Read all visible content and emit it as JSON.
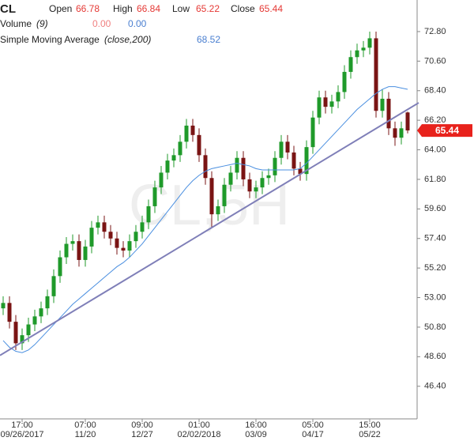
{
  "chart_data": {
    "type": "candlestick",
    "header": {
      "symbol": "CL",
      "open_label": "Open",
      "open": "66.78",
      "high_label": "High",
      "high": "66.84",
      "low_label": "Low",
      "low": "65.22",
      "close_label": "Close",
      "close": "65.44",
      "volume_label": "Volume",
      "volume_param": "(9)",
      "volume_a": "0.00",
      "volume_b": "0.00",
      "sma_label": "Simple Moving Average",
      "sma_param": "(close,200)",
      "sma_value": "68.52"
    },
    "watermark": "CL,5H",
    "categories": [
      null,
      null,
      null,
      "17:00",
      null,
      null,
      null,
      null,
      null,
      null,
      null,
      null,
      null,
      "07:00",
      null,
      null,
      null,
      null,
      null,
      null,
      null,
      null,
      "09:00",
      null,
      null,
      null,
      null,
      null,
      null,
      null,
      null,
      "01:00",
      null,
      null,
      null,
      null,
      null,
      null,
      null,
      null,
      "16:00",
      null,
      null,
      null,
      null,
      null,
      null,
      null,
      null,
      "05:00",
      null,
      null,
      null,
      null,
      null,
      null,
      null,
      null,
      "15:00",
      null,
      null,
      null,
      null,
      null,
      null
    ],
    "category_dates": [
      null,
      null,
      null,
      "09/26/2017",
      null,
      null,
      null,
      null,
      null,
      null,
      null,
      null,
      null,
      "11/20",
      null,
      null,
      null,
      null,
      null,
      null,
      null,
      null,
      "12/27",
      null,
      null,
      null,
      null,
      null,
      null,
      null,
      null,
      "02/02/2018",
      null,
      null,
      null,
      null,
      null,
      null,
      null,
      null,
      "03/09",
      null,
      null,
      null,
      null,
      null,
      null,
      null,
      null,
      "04/17",
      null,
      null,
      null,
      null,
      null,
      null,
      null,
      null,
      "05/22",
      null,
      null,
      null,
      null,
      null,
      null
    ],
    "open": [
      52.2,
      52.6,
      51.2,
      49.6,
      50.2,
      51.0,
      51.6,
      52.2,
      53.1,
      54.6,
      56.0,
      57.0,
      57.2,
      55.8,
      56.8,
      58.2,
      58.6,
      57.9,
      57.4,
      56.7,
      56.5,
      57.2,
      57.9,
      58.6,
      59.8,
      61.2,
      62.3,
      63.2,
      63.6,
      64.6,
      65.8,
      65.1,
      63.6,
      61.9,
      59.2,
      59.8,
      61.4,
      62.3,
      63.4,
      61.8,
      60.9,
      61.2,
      61.9,
      62.1,
      63.4,
      64.6,
      63.8,
      62.6,
      62.2,
      64.2,
      66.4,
      67.9,
      67.2,
      67.6,
      68.3,
      69.8,
      70.9,
      71.4,
      71.6,
      72.3,
      66.9,
      67.8,
      65.6,
      64.9,
      66.78
    ],
    "high": [
      53.1,
      53.1,
      51.7,
      50.7,
      51.5,
      52.1,
      52.7,
      53.6,
      55.1,
      56.5,
      57.5,
      57.7,
      57.7,
      57.3,
      58.7,
      59.1,
      59.1,
      58.4,
      57.9,
      57.2,
      57.7,
      58.4,
      59.1,
      60.3,
      61.7,
      62.8,
      63.7,
      64.1,
      65.1,
      66.3,
      66.3,
      65.6,
      64.1,
      62.4,
      60.3,
      61.9,
      62.8,
      63.9,
      63.9,
      62.3,
      61.7,
      62.4,
      62.6,
      63.9,
      65.1,
      65.1,
      64.3,
      63.1,
      64.7,
      66.9,
      68.4,
      68.4,
      68.1,
      68.8,
      70.3,
      71.4,
      71.9,
      72.1,
      72.8,
      72.8,
      68.5,
      68.3,
      66.1,
      66.1,
      66.84
    ],
    "low": [
      51.7,
      50.7,
      49.1,
      49.1,
      49.7,
      50.5,
      51.1,
      51.7,
      52.6,
      54.1,
      55.5,
      56.5,
      55.3,
      55.3,
      56.3,
      57.7,
      57.4,
      56.9,
      56.2,
      56.0,
      56.0,
      56.7,
      57.4,
      58.1,
      59.3,
      60.7,
      61.8,
      62.7,
      63.1,
      64.1,
      64.6,
      63.1,
      61.4,
      58.2,
      58.7,
      59.3,
      60.9,
      61.8,
      61.3,
      60.4,
      60.4,
      60.7,
      61.4,
      61.6,
      62.9,
      63.3,
      62.1,
      61.7,
      61.7,
      63.7,
      65.9,
      66.7,
      66.7,
      67.1,
      67.8,
      69.3,
      70.4,
      70.9,
      71.1,
      66.4,
      66.4,
      65.1,
      64.3,
      64.4,
      65.22
    ],
    "close": [
      52.6,
      51.2,
      49.6,
      50.2,
      51.0,
      51.6,
      52.2,
      53.1,
      54.6,
      56.0,
      57.0,
      57.2,
      55.8,
      56.8,
      58.2,
      58.6,
      57.9,
      57.4,
      56.7,
      56.5,
      57.2,
      57.9,
      58.6,
      59.8,
      61.2,
      62.3,
      63.2,
      63.6,
      64.6,
      65.8,
      65.1,
      63.6,
      61.9,
      59.2,
      59.8,
      61.4,
      62.3,
      63.4,
      61.8,
      60.9,
      61.2,
      61.9,
      62.1,
      63.4,
      64.6,
      63.8,
      62.6,
      62.2,
      64.2,
      66.4,
      67.9,
      67.2,
      67.6,
      68.3,
      69.8,
      70.9,
      71.4,
      71.6,
      72.3,
      66.9,
      67.8,
      65.6,
      64.9,
      65.6,
      65.44
    ],
    "up_color": "#1f9a2a",
    "down_color": "#7a1414",
    "sma": {
      "color": "#4a8fe0",
      "values": [
        49.8,
        49.3,
        49.0,
        48.9,
        49.1,
        49.5,
        50.0,
        50.5,
        51.0,
        51.5,
        52.0,
        52.5,
        52.9,
        53.3,
        53.7,
        54.1,
        54.5,
        54.9,
        55.3,
        55.6,
        56.0,
        56.5,
        57.0,
        57.6,
        58.2,
        58.8,
        59.4,
        60.0,
        60.6,
        61.2,
        61.7,
        62.1,
        62.4,
        62.6,
        62.7,
        62.8,
        62.9,
        63.0,
        62.9,
        62.8,
        62.6,
        62.5,
        62.5,
        62.5,
        62.5,
        62.5,
        62.5,
        62.6,
        63.0,
        63.5,
        64.0,
        64.5,
        65.0,
        65.5,
        66.0,
        66.5,
        67.0,
        67.4,
        67.8,
        68.2,
        68.5,
        68.7,
        68.7,
        68.6,
        68.5
      ]
    },
    "trend_line": {
      "start": 48.7,
      "end": 67.5,
      "color": "#7f7fb8"
    },
    "last_price_color": "#e8221c",
    "ylim": [
      44.09,
      75.15
    ],
    "yticks": [
      {
        "value": 72.8,
        "label": "72.80"
      },
      {
        "value": 70.6,
        "label": "70.60"
      },
      {
        "value": 68.4,
        "label": "68.40"
      },
      {
        "value": 66.2,
        "label": "66.20"
      },
      {
        "value": 64.0,
        "label": "64.00"
      },
      {
        "value": 61.8,
        "label": "61.80"
      },
      {
        "value": 59.6,
        "label": "59.60"
      },
      {
        "value": 57.4,
        "label": "57.40"
      },
      {
        "value": 55.2,
        "label": "55.20"
      },
      {
        "value": 53.0,
        "label": "53.00"
      },
      {
        "value": 50.8,
        "label": "50.80"
      },
      {
        "value": 48.6,
        "label": "48.60"
      },
      {
        "value": 46.4,
        "label": "46.40"
      }
    ]
  }
}
